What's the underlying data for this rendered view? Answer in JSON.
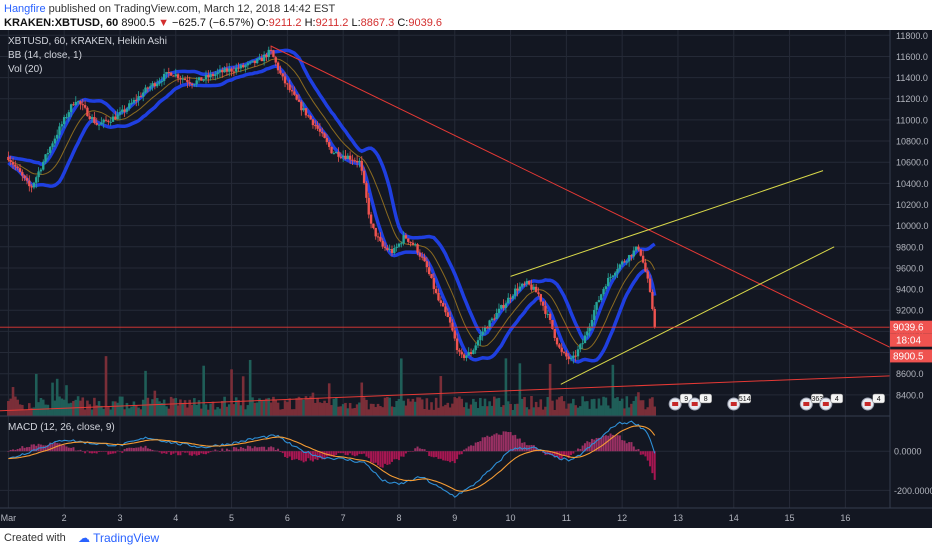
{
  "header": {
    "author": "Hangfire",
    "published": "published on TradingView.com, March 12, 2018 14:42 EST",
    "symbol": "KRAKEN:XBTUSD, 60",
    "last": "8900.5",
    "change": "−625.7 (−6.57%)",
    "open_label": "O:",
    "open": "9211.2",
    "high_label": "H:",
    "high": "9211.2",
    "low_label": "L:",
    "low": "8867.3",
    "close_label": "C:",
    "close": "9039.6"
  },
  "legend": {
    "main": "XBTUSD, 60, KRAKEN, Heikin Ashi",
    "bb": "BB (14, close, 1)",
    "vol": "Vol (20)",
    "macd": "MACD (12, 26, close, 9)"
  },
  "price_badges": {
    "current": "9039.6",
    "countdown": "18:04",
    "last": "8900.5"
  },
  "event_badges": [
    "9",
    "8",
    "514",
    "363",
    "4",
    "4"
  ],
  "footer": {
    "created": "Created with",
    "brand": "TradingView"
  },
  "colors": {
    "background": "#131722",
    "grid": "#252a37",
    "up": "#26a69a",
    "down": "#ef5350",
    "bb_band": "#1f3fe0",
    "bb_basis": "#8a6a20",
    "trend_red": "#e53935",
    "trend_yellow": "#d8d84a",
    "macd_line": "#2e8fd6",
    "signal_line": "#f59c34"
  },
  "chart_data": {
    "type": "candlestick",
    "chart_style": "Heikin Ashi",
    "price_axis": {
      "range": [
        8200,
        11850
      ],
      "ticks": [
        8400,
        8600,
        8800,
        9000,
        9200,
        9400,
        9600,
        9800,
        10000,
        10200,
        10400,
        10600,
        10800,
        11000,
        11200,
        11400,
        11600,
        11800
      ],
      "tick_labels": [
        "8400.0",
        "8600.0",
        "8800.0",
        "9000.0",
        "9200.0",
        "9400.0",
        "9600.0",
        "9800.0",
        "10000.0",
        "10200.0",
        "10400.0",
        "10600.0",
        "10800.0",
        "11000.0",
        "11200.0",
        "11400.0",
        "11600.0",
        "11800.0"
      ]
    },
    "time_axis": {
      "ticks": [
        1,
        2,
        3,
        4,
        5,
        6,
        7,
        8,
        9,
        10,
        11,
        12,
        13,
        14,
        15,
        16
      ],
      "tick_labels": [
        "Mar",
        "2",
        "3",
        "4",
        "5",
        "6",
        "7",
        "8",
        "9",
        "10",
        "11",
        "12",
        "13",
        "14",
        "15",
        "16"
      ],
      "data_range_days": [
        1,
        12.6
      ],
      "view_range_days": [
        0.85,
        16.8
      ]
    },
    "grid": true,
    "price_anchors": [
      [
        1.0,
        10650
      ],
      [
        1.4,
        10350
      ],
      [
        1.8,
        10800
      ],
      [
        2.2,
        11200
      ],
      [
        2.6,
        10950
      ],
      [
        3.0,
        11050
      ],
      [
        3.5,
        11300
      ],
      [
        3.9,
        11450
      ],
      [
        4.3,
        11350
      ],
      [
        4.8,
        11450
      ],
      [
        5.2,
        11500
      ],
      [
        5.5,
        11560
      ],
      [
        5.7,
        11650
      ],
      [
        5.9,
        11400
      ],
      [
        6.2,
        11150
      ],
      [
        6.5,
        10950
      ],
      [
        6.8,
        10700
      ],
      [
        7.1,
        10650
      ],
      [
        7.3,
        10600
      ],
      [
        7.5,
        10000
      ],
      [
        7.7,
        9800
      ],
      [
        7.9,
        9750
      ],
      [
        8.1,
        9900
      ],
      [
        8.3,
        9800
      ],
      [
        8.5,
        9600
      ],
      [
        8.7,
        9300
      ],
      [
        8.9,
        9100
      ],
      [
        9.1,
        8750
      ],
      [
        9.3,
        8800
      ],
      [
        9.5,
        9000
      ],
      [
        9.8,
        9200
      ],
      [
        10.1,
        9400
      ],
      [
        10.3,
        9450
      ],
      [
        10.5,
        9350
      ],
      [
        10.7,
        9100
      ],
      [
        10.9,
        8800
      ],
      [
        11.1,
        8720
      ],
      [
        11.3,
        8900
      ],
      [
        11.5,
        9200
      ],
      [
        11.7,
        9450
      ],
      [
        11.9,
        9600
      ],
      [
        12.1,
        9700
      ],
      [
        12.3,
        9800
      ],
      [
        12.45,
        9500
      ],
      [
        12.6,
        9039.6
      ]
    ],
    "last_price": 9039.6,
    "trendlines": [
      {
        "color": "red",
        "from": [
          5.7,
          11700
        ],
        "to": [
          16.8,
          8850
        ]
      },
      {
        "color": "red",
        "from": [
          0.85,
          8250
        ],
        "to": [
          16.8,
          8580
        ]
      },
      {
        "color": "yellow",
        "from": [
          10.0,
          9520
        ],
        "to": [
          15.6,
          10520
        ]
      },
      {
        "color": "yellow",
        "from": [
          10.9,
          8500
        ],
        "to": [
          15.8,
          9800
        ]
      }
    ],
    "macd": {
      "axis_ticks": [
        0,
        -200
      ],
      "tick_labels": [
        "0.0000",
        "-200.0000"
      ],
      "range": [
        -290,
        180
      ],
      "anchors": [
        [
          1.0,
          -40
        ],
        [
          1.5,
          10
        ],
        [
          2.0,
          60
        ],
        [
          2.5,
          40
        ],
        [
          3.0,
          30
        ],
        [
          3.5,
          70
        ],
        [
          4.0,
          40
        ],
        [
          4.5,
          20
        ],
        [
          5.0,
          40
        ],
        [
          5.5,
          70
        ],
        [
          5.8,
          80
        ],
        [
          6.2,
          10
        ],
        [
          6.6,
          -30
        ],
        [
          7.0,
          -40
        ],
        [
          7.4,
          -60
        ],
        [
          7.7,
          -150
        ],
        [
          8.0,
          -170
        ],
        [
          8.4,
          -130
        ],
        [
          8.8,
          -200
        ],
        [
          9.0,
          -230
        ],
        [
          9.3,
          -180
        ],
        [
          9.7,
          -80
        ],
        [
          10.0,
          10
        ],
        [
          10.4,
          20
        ],
        [
          10.8,
          -30
        ],
        [
          11.1,
          -50
        ],
        [
          11.5,
          40
        ],
        [
          11.9,
          140
        ],
        [
          12.2,
          150
        ],
        [
          12.45,
          100
        ],
        [
          12.6,
          -20
        ]
      ]
    },
    "volume": {
      "description": "volume histogram at bottom of price pane"
    }
  }
}
